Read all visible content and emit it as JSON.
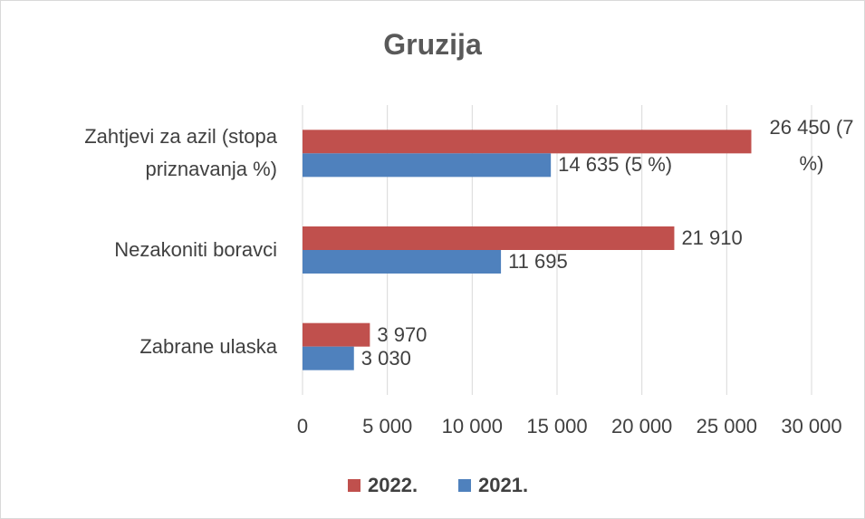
{
  "chart_data": {
    "type": "hbar",
    "title": "Gruzija",
    "categories": [
      "Zahtjevi za azil (stopa priznavanja %)",
      "Nezakoniti boravci",
      "Zabrane ulaska"
    ],
    "series": [
      {
        "name": "2022.",
        "color": "#c0504d",
        "values": [
          26450,
          21910,
          3970
        ],
        "value_labels": [
          "26 450 (7 %)",
          "21 910",
          "3 970"
        ]
      },
      {
        "name": "2021.",
        "color": "#4f81bd",
        "values": [
          14635,
          11695,
          3030
        ],
        "value_labels": [
          "14 635 (5 %)",
          "11 695",
          "3 030"
        ]
      }
    ],
    "xlim": [
      0,
      30000
    ],
    "xticks": [
      0,
      {
        "value": 5000,
        "label": "5 000"
      },
      {
        "value": 10000,
        "label": "10 000"
      },
      {
        "value": 15000,
        "label": "15 000"
      },
      {
        "value": 20000,
        "label": "20 000"
      },
      {
        "value": 25000,
        "label": "25 000"
      },
      {
        "value": 30000,
        "label": "30 000"
      }
    ],
    "grid": true,
    "legend": "bottom"
  }
}
